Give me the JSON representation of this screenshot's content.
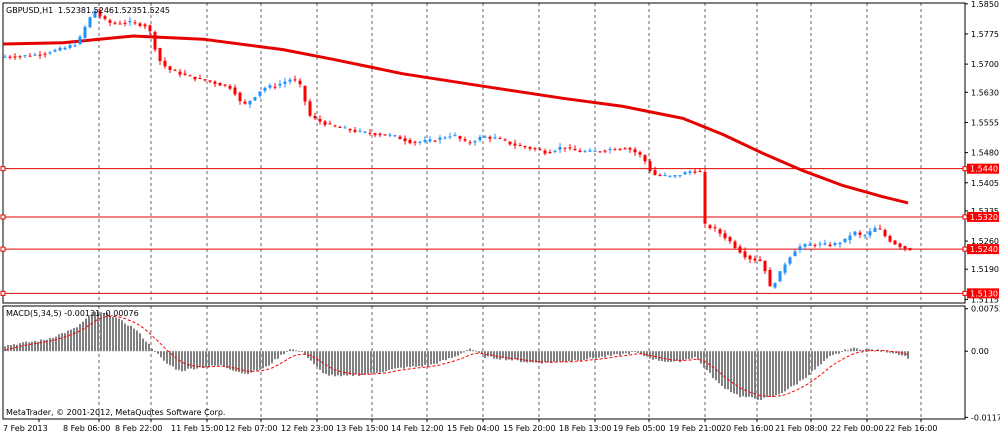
{
  "chart_data": [
    {
      "type": "candlestick",
      "header": {
        "symbol_tf": "GBPUSD,H1",
        "ohlc": [
          "1.5238",
          "1.5246",
          "1.5235",
          "1.5245"
        ]
      },
      "ylim": [
        1.5106,
        1.5852
      ],
      "y_ticks": [
        "1.5850",
        "1.5775",
        "1.5700",
        "1.5630",
        "1.5555",
        "1.5480",
        "1.5405",
        "1.5335",
        "1.5260",
        "1.5190",
        "1.5115"
      ],
      "x_ticks": [
        "7 Feb 2013",
        "8 Feb 06:00",
        "8 Feb 22:00",
        "11 Feb 15:00",
        "12 Feb 07:00",
        "12 Feb 23:00",
        "13 Feb 15:00",
        "14 Feb 12:00",
        "15 Feb 04:00",
        "15 Feb 20:00",
        "18 Feb 13:00",
        "19 Feb 05:00",
        "19 Feb 21:00",
        "20 Feb 16:00",
        "21 Feb 08:00",
        "22 Feb 00:00",
        "22 Feb 16:00"
      ],
      "horizontal_levels": [
        {
          "label": "1.5440",
          "price": 1.544
        },
        {
          "label": "1.5320",
          "price": 1.532
        },
        {
          "label": "1.5240",
          "price": 1.524
        },
        {
          "label": "1.5130",
          "price": 1.513
        }
      ],
      "price_path": [
        [
          0,
          1.5718
        ],
        [
          30,
          1.5722
        ],
        [
          60,
          1.5738
        ],
        [
          75,
          1.5752
        ],
        [
          85,
          1.5805
        ],
        [
          92,
          1.5835
        ],
        [
          100,
          1.5812
        ],
        [
          110,
          1.58
        ],
        [
          125,
          1.5805
        ],
        [
          145,
          1.5795
        ],
        [
          150,
          1.5765
        ],
        [
          155,
          1.5715
        ],
        [
          165,
          1.5688
        ],
        [
          185,
          1.567
        ],
        [
          210,
          1.5655
        ],
        [
          230,
          1.564
        ],
        [
          240,
          1.5595
        ],
        [
          250,
          1.5615
        ],
        [
          260,
          1.564
        ],
        [
          275,
          1.5648
        ],
        [
          290,
          1.5665
        ],
        [
          300,
          1.564
        ],
        [
          305,
          1.5575
        ],
        [
          315,
          1.556
        ],
        [
          330,
          1.5545
        ],
        [
          360,
          1.553
        ],
        [
          390,
          1.5522
        ],
        [
          410,
          1.5505
        ],
        [
          430,
          1.551
        ],
        [
          450,
          1.5525
        ],
        [
          465,
          1.5502
        ],
        [
          480,
          1.552
        ],
        [
          495,
          1.5515
        ],
        [
          510,
          1.55
        ],
        [
          530,
          1.549
        ],
        [
          545,
          1.548
        ],
        [
          560,
          1.5495
        ],
        [
          575,
          1.5483
        ],
        [
          590,
          1.5482
        ],
        [
          605,
          1.5488
        ],
        [
          625,
          1.5492
        ],
        [
          640,
          1.547
        ],
        [
          650,
          1.5425
        ],
        [
          670,
          1.542
        ],
        [
          690,
          1.5435
        ],
        [
          698,
          1.5432
        ],
        [
          702,
          1.53
        ],
        [
          712,
          1.529
        ],
        [
          725,
          1.5265
        ],
        [
          735,
          1.524
        ],
        [
          745,
          1.5218
        ],
        [
          760,
          1.521
        ],
        [
          768,
          1.514
        ],
        [
          775,
          1.517
        ],
        [
          785,
          1.5215
        ],
        [
          795,
          1.5245
        ],
        [
          810,
          1.5252
        ],
        [
          830,
          1.525
        ],
        [
          845,
          1.5265
        ],
        [
          850,
          1.5285
        ],
        [
          860,
          1.527
        ],
        [
          875,
          1.5295
        ],
        [
          885,
          1.5265
        ],
        [
          895,
          1.525
        ],
        [
          905,
          1.524
        ]
      ],
      "moving_average": [
        [
          0,
          1.575
        ],
        [
          60,
          1.5753
        ],
        [
          130,
          1.577
        ],
        [
          200,
          1.5762
        ],
        [
          280,
          1.5736
        ],
        [
          330,
          1.5712
        ],
        [
          400,
          1.5676
        ],
        [
          480,
          1.5645
        ],
        [
          560,
          1.5615
        ],
        [
          620,
          1.5595
        ],
        [
          680,
          1.5565
        ],
        [
          720,
          1.5525
        ],
        [
          760,
          1.5478
        ],
        [
          800,
          1.5435
        ],
        [
          840,
          1.5398
        ],
        [
          880,
          1.537
        ],
        [
          905,
          1.5355
        ]
      ]
    },
    {
      "type": "bar",
      "label": "MACD(5,34,5) -0.00131 -0.00076",
      "y_ticks": [
        "0.00752",
        "0.00",
        "-0.01171"
      ],
      "ylim": [
        -0.012,
        0.008
      ],
      "histogram_path": [
        [
          0,
          0.001
        ],
        [
          40,
          0.002
        ],
        [
          70,
          0.004
        ],
        [
          90,
          0.007
        ],
        [
          105,
          0.0065
        ],
        [
          130,
          0.004
        ],
        [
          150,
          0.0
        ],
        [
          160,
          -0.002
        ],
        [
          175,
          -0.0035
        ],
        [
          190,
          -0.003
        ],
        [
          215,
          -0.0025
        ],
        [
          240,
          -0.004
        ],
        [
          260,
          -0.003
        ],
        [
          285,
          0.0005
        ],
        [
          300,
          -0.0005
        ],
        [
          318,
          -0.004
        ],
        [
          335,
          -0.0045
        ],
        [
          365,
          -0.004
        ],
        [
          395,
          -0.003
        ],
        [
          425,
          -0.0025
        ],
        [
          450,
          -0.001
        ],
        [
          465,
          0.0005
        ],
        [
          480,
          -0.001
        ],
        [
          505,
          -0.0015
        ],
        [
          525,
          -0.002
        ],
        [
          545,
          -0.002
        ],
        [
          575,
          -0.0015
        ],
        [
          600,
          -0.001
        ],
        [
          630,
          -0.0002
        ],
        [
          650,
          -0.0015
        ],
        [
          670,
          -0.002
        ],
        [
          690,
          -0.001
        ],
        [
          700,
          -0.003
        ],
        [
          715,
          -0.006
        ],
        [
          735,
          -0.008
        ],
        [
          755,
          -0.0085
        ],
        [
          770,
          -0.008
        ],
        [
          790,
          -0.006
        ],
        [
          805,
          -0.004
        ],
        [
          825,
          -0.001
        ],
        [
          845,
          0.0005
        ],
        [
          860,
          0.0004
        ],
        [
          880,
          0.0
        ],
        [
          895,
          -0.0005
        ],
        [
          905,
          -0.0013
        ]
      ]
    }
  ],
  "footer": {
    "copyright": "MetaTrader, © 2001-2012, MetaQuotes Software Corp."
  },
  "colors": {
    "bull": "#1e90ff",
    "bear": "#ff0000",
    "ma": "#e60000",
    "macd_hist": "#808080",
    "macd_signal": "#ff0000",
    "grid": "#000000",
    "level_label_bg": "#ff0000"
  }
}
